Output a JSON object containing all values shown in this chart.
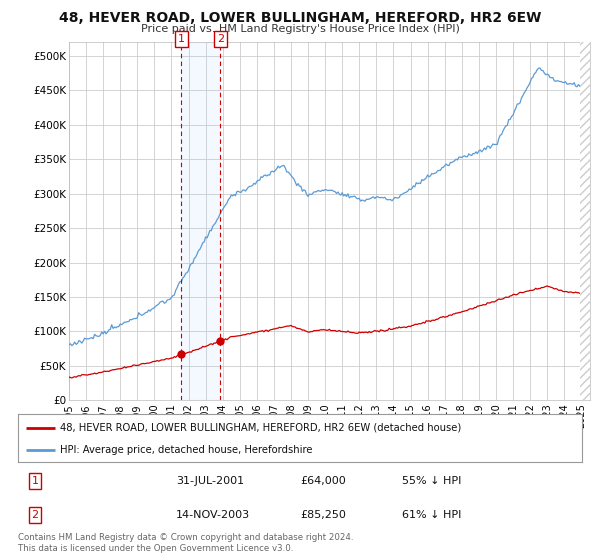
{
  "title": "48, HEVER ROAD, LOWER BULLINGHAM, HEREFORD, HR2 6EW",
  "subtitle": "Price paid vs. HM Land Registry's House Price Index (HPI)",
  "ylabel_ticks": [
    "£0",
    "£50K",
    "£100K",
    "£150K",
    "£200K",
    "£250K",
    "£300K",
    "£350K",
    "£400K",
    "£450K",
    "£500K"
  ],
  "ytick_values": [
    0,
    50000,
    100000,
    150000,
    200000,
    250000,
    300000,
    350000,
    400000,
    450000,
    500000
  ],
  "ylim": [
    0,
    520000
  ],
  "xlim_start": 1995.3,
  "xlim_end": 2025.5,
  "hpi_color": "#5b9bd5",
  "price_color": "#cc0000",
  "transaction1_date": 2001.58,
  "transaction1_price": 64000,
  "transaction2_date": 2003.87,
  "transaction2_price": 85250,
  "legend_line1": "48, HEVER ROAD, LOWER BULLINGHAM, HEREFORD, HR2 6EW (detached house)",
  "legend_line2": "HPI: Average price, detached house, Herefordshire",
  "table_row1": [
    "1",
    "31-JUL-2001",
    "£64,000",
    "55% ↓ HPI"
  ],
  "table_row2": [
    "2",
    "14-NOV-2003",
    "£85,250",
    "61% ↓ HPI"
  ],
  "footer": "Contains HM Land Registry data © Crown copyright and database right 2024.\nThis data is licensed under the Open Government Licence v3.0.",
  "background_color": "#ffffff",
  "grid_color": "#cccccc"
}
